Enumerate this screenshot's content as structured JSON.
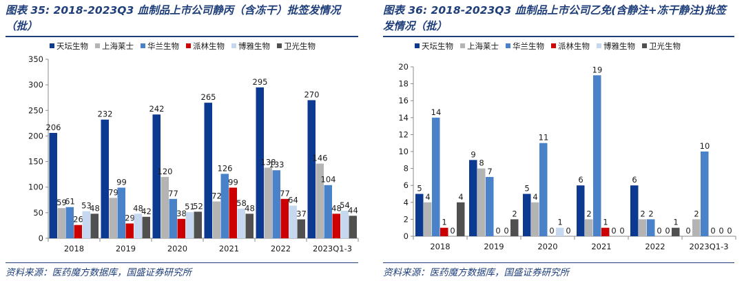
{
  "figures": [
    {
      "title": "图表 35:  2018-2023Q3 血制品上市公司静丙（含冻干）批签发情况（批）",
      "source": "资料来源：医药魔方数据库，国盛证券研究所"
    },
    {
      "title": "图表 36:  2018-2023Q3 血制品上市公司乙免(含静注+冻干静注)批签发情况（批）",
      "source": "资料来源：医药魔方数据库，国盛证券研究所"
    }
  ],
  "colors": {
    "天坛生物": "#0d3a91",
    "上海莱士": "#b4b4b4",
    "华兰生物": "#4a82c9",
    "派林生物": "#cc0000",
    "博雅生物": "#c6d8ef",
    "卫光生物": "#505050",
    "title": "#1f3f7a"
  },
  "chart_data": [
    {
      "type": "bar",
      "categories": [
        "2018",
        "2019",
        "2020",
        "2021",
        "2022",
        "2023Q1-3"
      ],
      "series": [
        {
          "name": "天坛生物",
          "values": [
            206,
            232,
            242,
            265,
            295,
            270
          ]
        },
        {
          "name": "上海莱士",
          "values": [
            59,
            79,
            120,
            72,
            138,
            146
          ]
        },
        {
          "name": "华兰生物",
          "values": [
            61,
            99,
            77,
            126,
            133,
            104
          ]
        },
        {
          "name": "派林生物",
          "values": [
            26,
            29,
            38,
            99,
            77,
            48
          ]
        },
        {
          "name": "博雅生物",
          "values": [
            53,
            48,
            51,
            58,
            64,
            54
          ]
        },
        {
          "name": "卫光生物",
          "values": [
            48,
            42,
            52,
            48,
            37,
            44
          ]
        }
      ],
      "ylim": [
        0,
        350
      ],
      "yticks": [
        0,
        50,
        100,
        150,
        200,
        250,
        300,
        350
      ],
      "legend": "top",
      "grid": false
    },
    {
      "type": "bar",
      "categories": [
        "2018",
        "2019",
        "2020",
        "2021",
        "2022",
        "2023Q1-3"
      ],
      "series": [
        {
          "name": "天坛生物",
          "values": [
            5,
            9,
            5,
            6,
            6,
            0
          ]
        },
        {
          "name": "上海莱士",
          "values": [
            4,
            8,
            4,
            2,
            2,
            2
          ]
        },
        {
          "name": "华兰生物",
          "values": [
            14,
            7,
            11,
            19,
            2,
            10
          ]
        },
        {
          "name": "派林生物",
          "values": [
            1,
            0,
            0,
            1,
            0,
            0
          ]
        },
        {
          "name": "博雅生物",
          "values": [
            0,
            0,
            1,
            0,
            0,
            0
          ]
        },
        {
          "name": "卫光生物",
          "values": [
            4,
            2,
            0,
            0,
            1,
            0
          ]
        }
      ],
      "ylim": [
        0,
        20
      ],
      "yticks": [
        0,
        2,
        4,
        6,
        8,
        10,
        12,
        14,
        16,
        18,
        20
      ],
      "legend": "top",
      "grid": false
    }
  ]
}
